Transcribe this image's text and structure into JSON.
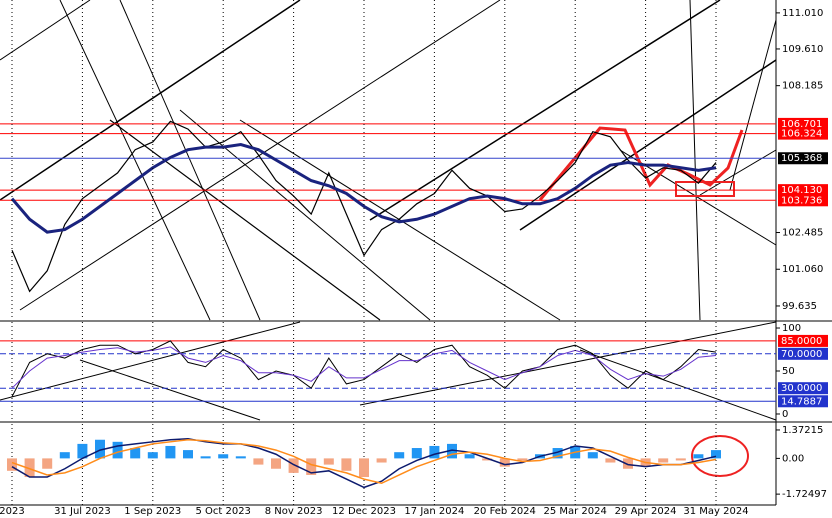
{
  "chart_data": [
    {
      "type": "line",
      "ylim": [
        99.09,
        111.51
      ],
      "yticks": [
        {
          "value": 111.01,
          "label": "111.010"
        },
        {
          "value": 109.61,
          "label": "109.610"
        },
        108.185,
        102.485,
        {
          "value": 101.06,
          "label": "101.060"
        },
        99.635
      ],
      "levels": [
        {
          "value": 106.701,
          "label": "106.701",
          "color": "#ff0000"
        },
        {
          "value": 106.324,
          "label": "106.324",
          "color": "#ff0000"
        },
        {
          "value": 105.368,
          "label": "105.368",
          "color": "#000000",
          "line_color": "#3344cc"
        },
        {
          "value": 104.13,
          "label": "104.130",
          "color": "#ff0000"
        },
        {
          "value": 103.736,
          "label": "103.736",
          "color": "#ff0000"
        }
      ],
      "series": [
        {
          "color": "#000000",
          "width": 1.2,
          "values": [
            101.8,
            100.2,
            101.0,
            102.8,
            103.8,
            104.3,
            104.8,
            105.7,
            106.0,
            106.8,
            106.5,
            105.8,
            106.0,
            106.4,
            105.5,
            104.5,
            103.9,
            103.2,
            104.8,
            103.2,
            101.6,
            102.6,
            103.0,
            103.6,
            104.0,
            104.9,
            104.2,
            103.9,
            103.3,
            103.4,
            103.9,
            104.5,
            105.2,
            106.4,
            106.2,
            105.3,
            104.6,
            105.0,
            104.9,
            104.4,
            105.2
          ]
        },
        {
          "color": "#1a237e",
          "width": 3,
          "values": [
            103.8,
            103.0,
            102.5,
            102.6,
            103.0,
            103.5,
            104.0,
            104.5,
            105.0,
            105.4,
            105.7,
            105.8,
            105.8,
            105.9,
            105.7,
            105.3,
            104.9,
            104.5,
            104.3,
            104.0,
            103.5,
            103.1,
            102.9,
            103.0,
            103.2,
            103.5,
            103.8,
            103.9,
            103.8,
            103.6,
            103.6,
            103.8,
            104.2,
            104.7,
            105.1,
            105.2,
            105.1,
            105.1,
            105.0,
            104.9,
            105.0
          ]
        }
      ]
    },
    {
      "type": "line",
      "ylim": [
        -7,
        107
      ],
      "yticks": [
        100,
        50,
        0
      ],
      "levels": [
        {
          "value": 85,
          "label": "85.0000",
          "color": "#ff0000"
        },
        {
          "value": 70,
          "label": "70.0000",
          "color": "#2233cc",
          "dash": true
        },
        {
          "value": 30,
          "label": "30.0000",
          "color": "#2233cc",
          "dash": true
        },
        {
          "value": 14.7887,
          "label": "14.7887",
          "color": "#2233cc"
        }
      ],
      "series": [
        {
          "color": "#000000",
          "width": 1,
          "values": [
            20,
            60,
            70,
            65,
            75,
            80,
            80,
            70,
            75,
            85,
            60,
            55,
            75,
            65,
            40,
            50,
            45,
            30,
            65,
            35,
            40,
            55,
            70,
            60,
            75,
            80,
            55,
            45,
            30,
            50,
            55,
            75,
            80,
            70,
            45,
            30,
            50,
            40,
            55,
            75,
            72
          ]
        },
        {
          "color": "#6633cc",
          "width": 1,
          "values": [
            30,
            50,
            65,
            68,
            72,
            75,
            77,
            72,
            74,
            78,
            65,
            60,
            68,
            62,
            48,
            48,
            45,
            38,
            55,
            42,
            42,
            52,
            62,
            62,
            70,
            74,
            60,
            50,
            40,
            48,
            55,
            68,
            74,
            68,
            52,
            40,
            47,
            44,
            52,
            66,
            68
          ]
        }
      ]
    },
    {
      "type": "bar",
      "ylim": [
        -2.25,
        1.66
      ],
      "yticks": [
        1.37215,
        {
          "value": 0,
          "label": "0.00"
        },
        -1.72497
      ],
      "pos_color": "#2196f3",
      "neg_color": "#f4a582",
      "values": [
        -0.6,
        -0.9,
        -0.5,
        0.3,
        0.7,
        0.9,
        0.8,
        0.5,
        0.3,
        0.6,
        0.4,
        0.1,
        0.2,
        0.1,
        -0.3,
        -0.5,
        -0.7,
        -0.8,
        -0.3,
        -0.6,
        -0.9,
        -0.2,
        0.3,
        0.5,
        0.6,
        0.7,
        0.2,
        -0.1,
        -0.4,
        -0.1,
        0.2,
        0.5,
        0.6,
        0.3,
        -0.2,
        -0.5,
        -0.4,
        -0.2,
        -0.1,
        0.2,
        0.4
      ],
      "series": [
        {
          "color": "#0d1b6e",
          "width": 1.5,
          "values": [
            -0.4,
            -0.9,
            -0.9,
            -0.5,
            0,
            0.4,
            0.6,
            0.7,
            0.8,
            0.9,
            0.95,
            0.8,
            0.7,
            0.7,
            0.5,
            0.2,
            -0.3,
            -0.7,
            -0.6,
            -1.0,
            -1.4,
            -1.1,
            -0.5,
            -0.1,
            0.2,
            0.4,
            0.3,
            0,
            -0.3,
            -0.2,
            0.1,
            0.3,
            0.6,
            0.5,
            0.1,
            -0.3,
            -0.4,
            -0.3,
            -0.3,
            -0.1,
            0.1
          ]
        },
        {
          "color": "#ff8c1a",
          "width": 1.5,
          "values": [
            -0.2,
            -0.5,
            -0.8,
            -0.7,
            -0.4,
            0,
            0.3,
            0.5,
            0.7,
            0.8,
            0.9,
            0.85,
            0.75,
            0.7,
            0.6,
            0.4,
            0.1,
            -0.3,
            -0.5,
            -0.7,
            -1.0,
            -1.2,
            -0.8,
            -0.4,
            -0.1,
            0.2,
            0.3,
            0.2,
            0,
            -0.15,
            -0.1,
            0.1,
            0.3,
            0.45,
            0.35,
            0.05,
            -0.2,
            -0.3,
            -0.3,
            -0.2,
            -0.05
          ]
        }
      ],
      "categories": [
        "2023",
        null,
        null,
        null,
        "31 Jul 2023",
        null,
        null,
        null,
        "1 Sep 2023",
        null,
        null,
        null,
        "5 Oct 2023",
        null,
        null,
        null,
        "8 Nov 2023",
        null,
        null,
        null,
        "12 Dec 2023",
        null,
        null,
        null,
        "17 Jan 2024",
        null,
        null,
        null,
        "20 Feb 2024",
        null,
        null,
        null,
        "25 Mar 2024",
        null,
        null,
        null,
        "29 Apr 2024",
        null,
        null,
        null,
        "31 May 2024"
      ],
      "grid": true
    }
  ]
}
